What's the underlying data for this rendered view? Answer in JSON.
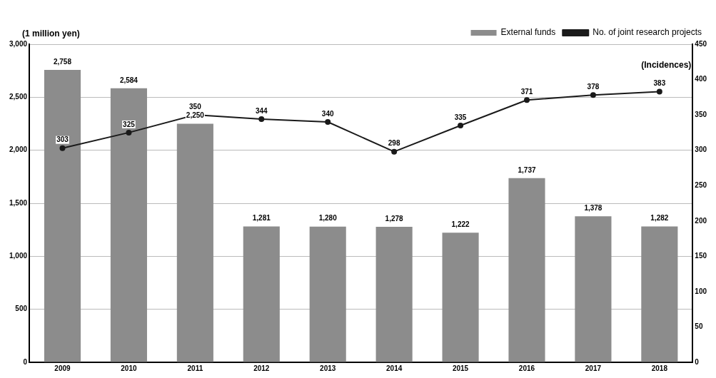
{
  "chart_data": {
    "type": "bar",
    "ylabel": "(1 million yen)",
    "y2label": "(Incidences)",
    "categories": [
      "2009",
      "2010",
      "2011",
      "2012",
      "2013",
      "2014",
      "2015",
      "2016",
      "2017",
      "2018"
    ],
    "series": [
      {
        "name": "External funds",
        "color": "#8c8c8c",
        "values": [
          2758,
          2584,
          2250,
          1281,
          1280,
          1278,
          1222,
          1737,
          1378,
          1282
        ],
        "value_labels": [
          "2,758",
          "2,584",
          "2,250",
          "1,281",
          "1,280",
          "1,278",
          "1,222",
          "1,737",
          "1,378",
          "1,282"
        ]
      },
      {
        "name": "No. of joint research projects",
        "type": "line",
        "axis": "y2",
        "color": "#1a1a1a",
        "marker": "circle",
        "values": [
          303,
          325,
          350,
          344,
          340,
          298,
          335,
          371,
          378,
          383
        ]
      }
    ],
    "ylim": [
      0,
      3000
    ],
    "yticks": [
      {
        "value": 0,
        "label": "0"
      },
      {
        "value": 500,
        "label": "500"
      },
      {
        "value": 1000,
        "label": "1,000"
      },
      {
        "value": 1500,
        "label": "1,500"
      },
      {
        "value": 2000,
        "label": "2,000"
      },
      {
        "value": 2500,
        "label": "2,500"
      },
      {
        "value": 3000,
        "label": "3,000"
      }
    ],
    "y2lim": [
      0,
      450
    ],
    "y2ticks": [
      0,
      50,
      100,
      150,
      200,
      250,
      300,
      350,
      400,
      450
    ],
    "grid": "y",
    "legend": "top right",
    "data_labels": true
  }
}
